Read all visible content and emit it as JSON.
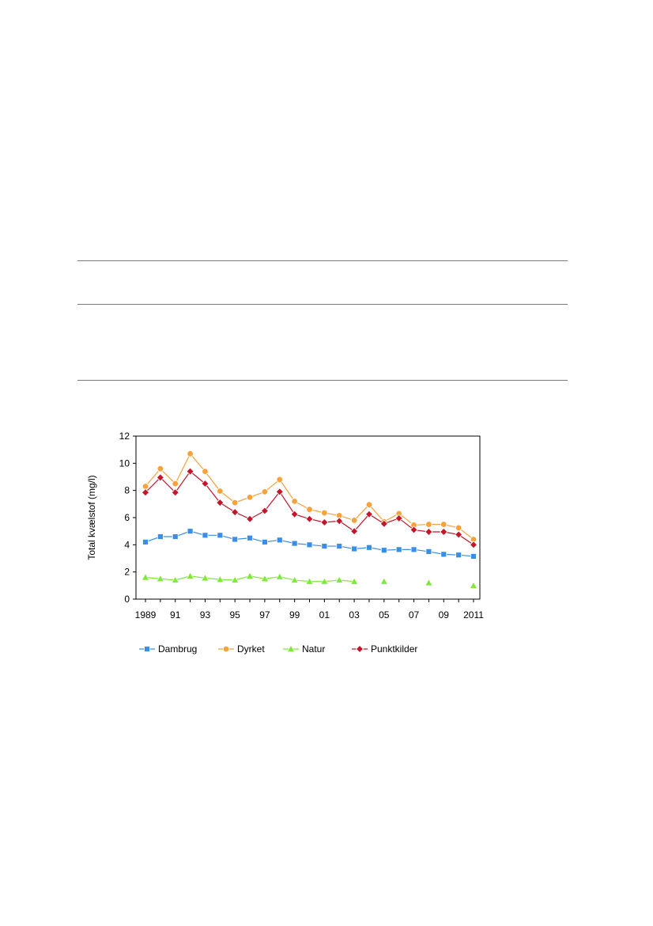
{
  "chart_data": {
    "type": "line",
    "ylabel": "Total kvælstof (mg/l)",
    "ylim": [
      0,
      12
    ],
    "yticks": [
      0,
      2,
      4,
      6,
      8,
      10,
      12
    ],
    "xlim": [
      1989,
      2011
    ],
    "xtick_labels": [
      {
        "x": 1989,
        "label": "1989"
      },
      {
        "x": 1991,
        "label": "91"
      },
      {
        "x": 1993,
        "label": "93"
      },
      {
        "x": 1995,
        "label": "95"
      },
      {
        "x": 1997,
        "label": "97"
      },
      {
        "x": 1999,
        "label": "99"
      },
      {
        "x": 2001,
        "label": "01"
      },
      {
        "x": 2003,
        "label": "03"
      },
      {
        "x": 2005,
        "label": "05"
      },
      {
        "x": 2007,
        "label": "07"
      },
      {
        "x": 2009,
        "label": "09"
      },
      {
        "x": 2011,
        "label": "2011"
      }
    ],
    "legend_position": "bottom",
    "series": [
      {
        "name": "Dambrug",
        "color": "#3a8ee6",
        "marker": "square",
        "x": [
          1989,
          1990,
          1991,
          1992,
          1993,
          1994,
          1995,
          1996,
          1997,
          1998,
          1999,
          2000,
          2001,
          2002,
          2003,
          2004,
          2005,
          2006,
          2007,
          2008,
          2009,
          2010,
          2011
        ],
        "values": [
          4.2,
          4.6,
          4.6,
          5.0,
          4.7,
          4.7,
          4.4,
          4.5,
          4.2,
          4.35,
          4.1,
          4.0,
          3.9,
          3.9,
          3.7,
          3.8,
          3.6,
          3.65,
          3.65,
          3.5,
          3.3,
          3.25,
          3.15
        ]
      },
      {
        "name": "Dyrket",
        "color": "#f7a23c",
        "marker": "circle",
        "x": [
          1989,
          1990,
          1991,
          1992,
          1993,
          1994,
          1995,
          1996,
          1997,
          1998,
          1999,
          2000,
          2001,
          2002,
          2003,
          2004,
          2005,
          2006,
          2007,
          2008,
          2009,
          2010,
          2011
        ],
        "values": [
          8.3,
          9.6,
          8.5,
          10.7,
          9.4,
          7.95,
          7.1,
          7.5,
          7.9,
          8.8,
          7.2,
          6.6,
          6.35,
          6.15,
          5.8,
          6.95,
          5.7,
          6.3,
          5.45,
          5.5,
          5.5,
          5.25,
          4.4
        ]
      },
      {
        "name": "Natur",
        "color": "#7fe83a",
        "marker": "triangle",
        "x": [
          1989,
          1990,
          1991,
          1992,
          1993,
          1994,
          1995,
          1996,
          1997,
          1998,
          1999,
          2000,
          2001,
          2002,
          2003,
          2005,
          2008,
          2011
        ],
        "values": [
          1.6,
          1.5,
          1.4,
          1.7,
          1.55,
          1.45,
          1.4,
          1.7,
          1.5,
          1.65,
          1.4,
          1.3,
          1.3,
          1.4,
          1.3,
          1.3,
          1.2,
          1.0
        ],
        "connected_until": 2003
      },
      {
        "name": "Punktkilder",
        "color": "#c4162a",
        "marker": "diamond",
        "x": [
          1989,
          1990,
          1991,
          1992,
          1993,
          1994,
          1995,
          1996,
          1997,
          1998,
          1999,
          2000,
          2001,
          2002,
          2003,
          2004,
          2005,
          2006,
          2007,
          2008,
          2009,
          2010,
          2011
        ],
        "values": [
          7.85,
          8.95,
          7.85,
          9.4,
          8.5,
          7.1,
          6.4,
          5.9,
          6.5,
          7.9,
          6.25,
          5.9,
          5.65,
          5.75,
          5.0,
          6.25,
          5.55,
          5.95,
          5.1,
          4.95,
          4.95,
          4.75,
          4.0
        ]
      }
    ]
  }
}
